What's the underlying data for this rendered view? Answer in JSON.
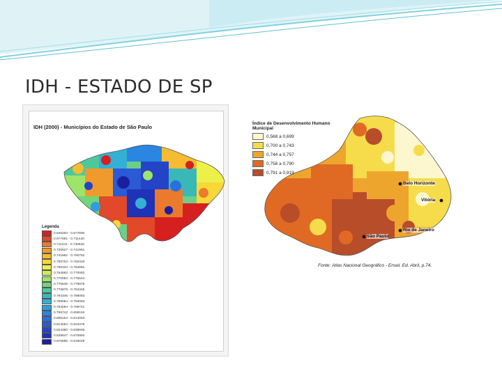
{
  "slide": {
    "title": "IDH - ESTADO DE SP"
  },
  "left_map": {
    "title": "IDH (2000) - Municípios do Estado de São Paulo",
    "legend_title": "Legenda",
    "legend": [
      {
        "label": "0.645263 - 0.677690",
        "color": "#d62020"
      },
      {
        "label": "0.677691 - 0.711440",
        "color": "#e2482a"
      },
      {
        "label": "0.711441 - 0.730626",
        "color": "#ec7a2c"
      },
      {
        "label": "0.730627 - 0.741961",
        "color": "#f09a2e"
      },
      {
        "label": "0.741962 - 0.750752",
        "color": "#f6bb32"
      },
      {
        "label": "0.750753 - 0.760333",
        "color": "#f8d838"
      },
      {
        "label": "0.760334 - 0.764681",
        "color": "#eef04a"
      },
      {
        "label": "0.764682 - 0.770082",
        "color": "#c8ec5a"
      },
      {
        "label": "0.770083 - 0.775544",
        "color": "#9ee46a"
      },
      {
        "label": "0.775545 - 0.779978",
        "color": "#70d67c"
      },
      {
        "label": "0.779979 - 0.784345",
        "color": "#4ec89a"
      },
      {
        "label": "0.784346 - 0.789083",
        "color": "#3ab8b8"
      },
      {
        "label": "0.789084 - 0.794083",
        "color": "#34b0d4"
      },
      {
        "label": "0.794084 - 0.799741",
        "color": "#2e9ee0"
      },
      {
        "label": "0.799742 - 0.806153",
        "color": "#2a86e0"
      },
      {
        "label": "0.806154 - 0.814053",
        "color": "#2a70dc"
      },
      {
        "label": "0.814054 - 0.824379",
        "color": "#2a5ad6"
      },
      {
        "label": "0.824380 - 0.839946",
        "color": "#2444c8"
      },
      {
        "label": "0.839947 - 0.870884",
        "color": "#2032b8"
      },
      {
        "label": "0.870885 - 0.919049",
        "color": "#1a1fa0"
      }
    ]
  },
  "right_map": {
    "legend_title": "Índice de Desenvolvimento Humano Municipal",
    "legend": [
      {
        "label": "0,568 a 0,699",
        "color": "#fdf7cf"
      },
      {
        "label": "0,700 a 0,743",
        "color": "#f6dc4a"
      },
      {
        "label": "0,744 a 0,757",
        "color": "#eea52e"
      },
      {
        "label": "0,758 a 0,790",
        "color": "#e06a24"
      },
      {
        "label": "0,791 a 0,919",
        "color": "#b84d2a"
      }
    ],
    "cities": {
      "belo_horizonte": "Belo Horizonte",
      "vitoria": "Vitória",
      "rio": "Rio de Janeiro",
      "sao_paulo": "São Paulo"
    },
    "source": "Fonte: Atlas Nacional Geográfico - Ensel. Ed. Abril, p.74."
  }
}
